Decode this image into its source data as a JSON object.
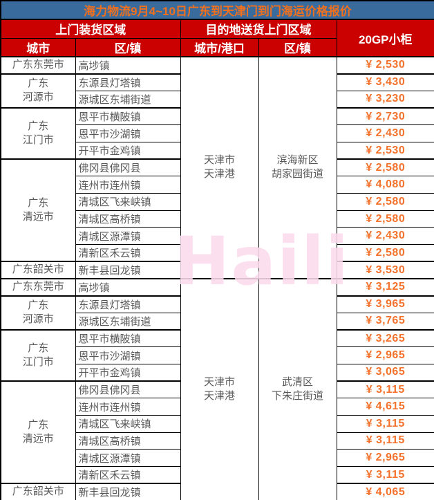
{
  "page": {
    "title": "海力物流9月4~10日广东到天津门到门海运价格报价",
    "watermark": "Haili"
  },
  "colors": {
    "title_bg": "#3a6b9d",
    "title_text": "#f0701e",
    "header_bg": "#cb0000",
    "header_text": "#ffffff",
    "body_text": "#595959",
    "price_text": "#f4722b",
    "watermark_pink": "#fcdbec",
    "border": "#000000"
  },
  "header": {
    "pickup_group": "上门装货区域",
    "delivery_group": "目的地送货上门区域",
    "col_city": "城市",
    "col_district": "区/镇",
    "col_dest_city": "城市/港口",
    "col_dest_district": "区/镇",
    "col_price": "20GP小柜"
  },
  "sections": [
    {
      "dest_city_lines": [
        "天津市",
        "天津港"
      ],
      "dest_district_lines": [
        "滨海新区",
        "胡家园街道"
      ],
      "groups": [
        {
          "city_lines": [
            "广东东莞市"
          ],
          "rows": [
            {
              "district": "高埗镇",
              "price": "¥ 2,530"
            }
          ]
        },
        {
          "city_lines": [
            "广东",
            "河源市"
          ],
          "rows": [
            {
              "district": "东源县灯塔镇",
              "price": "¥ 3,430"
            },
            {
              "district": "源城区东埔街道",
              "price": "¥ 3,230"
            }
          ]
        },
        {
          "city_lines": [
            "广东",
            "江门市"
          ],
          "rows": [
            {
              "district": "恩平市横陂镇",
              "price": "¥ 2,730"
            },
            {
              "district": "恩平市沙湖镇",
              "price": "¥ 2,430"
            },
            {
              "district": "开平市金鸡镇",
              "price": "¥ 2,530"
            }
          ]
        },
        {
          "city_lines": [
            "广东",
            "清远市"
          ],
          "rows": [
            {
              "district": "佛冈县佛冈县",
              "price": "¥ 2,580"
            },
            {
              "district": "连州市连州镇",
              "price": "¥ 4,080"
            },
            {
              "district": "清城区飞来峡镇",
              "price": "¥ 2,580"
            },
            {
              "district": "清城区高桥镇",
              "price": "¥ 2,580"
            },
            {
              "district": "清城区源潭镇",
              "price": "¥ 2,430"
            },
            {
              "district": "清新区禾云镇",
              "price": "¥ 2,580"
            }
          ]
        },
        {
          "city_lines": [
            "广东韶关市"
          ],
          "rows": [
            {
              "district": "新丰县回龙镇",
              "price": "¥ 3,530"
            }
          ]
        }
      ]
    },
    {
      "dest_city_lines": [
        "天津市",
        "天津港"
      ],
      "dest_district_lines": [
        "武清区",
        "下朱庄街道"
      ],
      "groups": [
        {
          "city_lines": [
            "广东东莞市"
          ],
          "rows": [
            {
              "district": "高埗镇",
              "price": "¥ 3,125"
            }
          ]
        },
        {
          "city_lines": [
            "广东",
            "河源市"
          ],
          "rows": [
            {
              "district": "东源县灯塔镇",
              "price": "¥ 3,965"
            },
            {
              "district": "源城区东埔街道",
              "price": "¥ 3,765"
            }
          ]
        },
        {
          "city_lines": [
            "广东",
            "江门市"
          ],
          "rows": [
            {
              "district": "恩平市横陂镇",
              "price": "¥ 3,265"
            },
            {
              "district": "恩平市沙湖镇",
              "price": "¥ 2,965"
            },
            {
              "district": "开平市金鸡镇",
              "price": "¥ 3,065"
            }
          ]
        },
        {
          "city_lines": [
            "广东",
            "清远市"
          ],
          "rows": [
            {
              "district": "佛冈县佛冈县",
              "price": "¥ 3,115"
            },
            {
              "district": "连州市连州镇",
              "price": "¥ 4,615"
            },
            {
              "district": "清城区飞来峡镇",
              "price": "¥ 3,115"
            },
            {
              "district": "清城区高桥镇",
              "price": "¥ 3,115"
            },
            {
              "district": "清城区源潭镇",
              "price": "¥ 2,965"
            },
            {
              "district": "清新区禾云镇",
              "price": "¥ 3,115"
            }
          ]
        },
        {
          "city_lines": [
            "广东韶关市"
          ],
          "rows": [
            {
              "district": "新丰县回龙镇",
              "price": "¥ 4,065"
            }
          ]
        }
      ]
    }
  ]
}
